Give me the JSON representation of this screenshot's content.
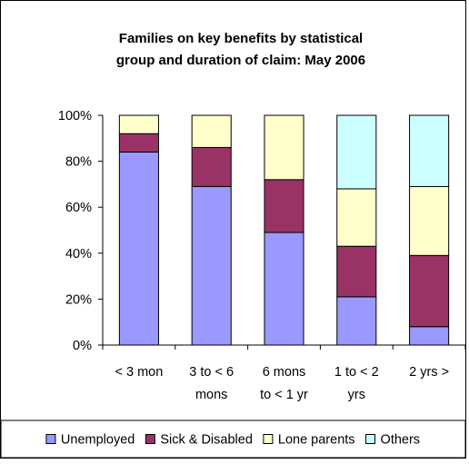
{
  "chart_data": {
    "type": "bar",
    "stacked": true,
    "percent_stacked": true,
    "title_lines": [
      "Families on key benefits by statistical",
      "group and duration of claim: May 2006"
    ],
    "xlabel": "",
    "ylabel": "",
    "ylim": [
      0,
      100
    ],
    "y_ticks": [
      "0%",
      "20%",
      "40%",
      "60%",
      "80%",
      "100%"
    ],
    "grid": false,
    "legend_position": "bottom",
    "categories": [
      [
        "< 3 mon"
      ],
      [
        "3 to < 6",
        "mons"
      ],
      [
        "6 mons",
        "to < 1 yr"
      ],
      [
        "1 to < 2",
        "yrs"
      ],
      [
        "2 yrs >"
      ]
    ],
    "series": [
      {
        "name": "Unemployed",
        "color": "#9999ff",
        "values": [
          84,
          69,
          49,
          21,
          8
        ]
      },
      {
        "name": "Sick & Disabled",
        "color": "#993366",
        "values": [
          8,
          17,
          23,
          22,
          31
        ]
      },
      {
        "name": "Lone parents",
        "color": "#ffffcc",
        "values": [
          8,
          14,
          28,
          25,
          30
        ]
      },
      {
        "name": "Others",
        "color": "#ccffff",
        "values": [
          0,
          0,
          0,
          32,
          31
        ]
      }
    ]
  }
}
